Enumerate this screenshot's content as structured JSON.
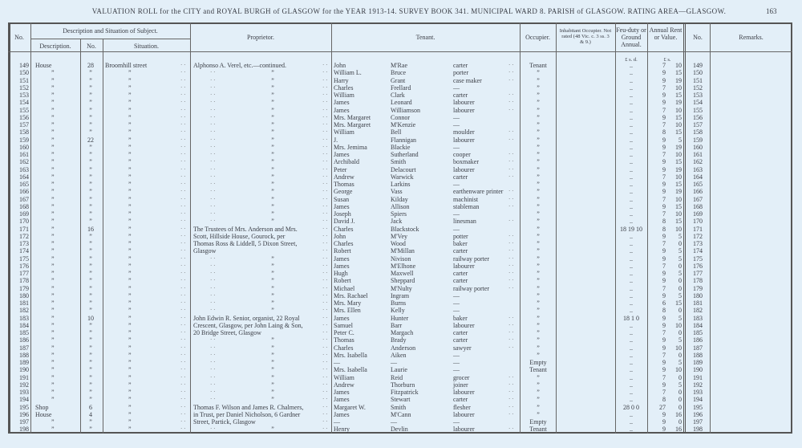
{
  "header": {
    "title": "VALUATION ROLL for the CITY and ROYAL BURGH of GLASGOW for the YEAR 1913-14.   SURVEY BOOK 341.   MUNICIPAL WARD 8.   PARISH of GLASGOW.   RATING AREA—GLASGOW.",
    "page_number": "163"
  },
  "columns": {
    "no": "No.",
    "description_group": "Description and Situation of Subject.",
    "description": "Description.",
    "num": "No.",
    "situation": "Situation.",
    "proprietor": "Proprietor.",
    "tenant": "Tenant.",
    "occupier": "Occupier.",
    "inhabitant": "Inhabitant Occupier. Not rated (48 Vic. c. 3 ss. 3 & 9.)",
    "feu": "Feu-duty or Ground Annual.",
    "rent": "Annual Rent or Value.",
    "no2": "No.",
    "remarks": "Remarks.",
    "feu_units": "£ s. d.",
    "rent_units": "£ s."
  },
  "rows": [
    [
      "149",
      "House",
      "28",
      "Broomhill street",
      "Alphonso A. Verel, etc.—continued.",
      "John",
      "M'Rae",
      "carter",
      "Tenant",
      "..",
      "7",
      "10"
    ],
    [
      "150",
      "”",
      "”",
      "”",
      "”",
      "William L.",
      "Bruce",
      "porter",
      "”",
      "..",
      "9",
      "15"
    ],
    [
      "151",
      "”",
      "”",
      "”",
      "”",
      "Harry",
      "Grant",
      "case maker",
      "”",
      "..",
      "9",
      "19"
    ],
    [
      "152",
      "”",
      "”",
      "”",
      "”",
      "Charles",
      "Frellard",
      "—",
      "”",
      "..",
      "7",
      "10"
    ],
    [
      "153",
      "”",
      "”",
      "”",
      "”",
      "William",
      "Clark",
      "carter",
      "”",
      "..",
      "9",
      "15"
    ],
    [
      "154",
      "”",
      "”",
      "”",
      "”",
      "James",
      "Leonard",
      "labourer",
      "”",
      "..",
      "9",
      "19"
    ],
    [
      "155",
      "”",
      "”",
      "”",
      "”",
      "James",
      "Williamson",
      "labourer",
      "”",
      "..",
      "7",
      "10"
    ],
    [
      "156",
      "”",
      "”",
      "”",
      "”",
      "Mrs. Margaret",
      "Connor",
      "—",
      "”",
      "..",
      "9",
      "15"
    ],
    [
      "157",
      "”",
      "”",
      "”",
      "”",
      "Mrs. Margaret",
      "M'Kenzie",
      "—",
      "”",
      "..",
      "7",
      "10"
    ],
    [
      "158",
      "”",
      "”",
      "”",
      "”",
      "William",
      "Bell",
      "moulder",
      "”",
      "..",
      "8",
      "15"
    ],
    [
      "159",
      "”",
      "22",
      "”",
      "”",
      "J.",
      "Flannigan",
      "labourer",
      "”",
      "..",
      "9",
      "5"
    ],
    [
      "160",
      "”",
      "”",
      "”",
      "”",
      "Mrs. Jemima",
      "Blackie",
      "—",
      "”",
      "..",
      "9",
      "19"
    ],
    [
      "161",
      "”",
      "”",
      "”",
      "”",
      "James",
      "Sutherland",
      "cooper",
      "”",
      "..",
      "7",
      "10"
    ],
    [
      "162",
      "”",
      "”",
      "”",
      "”",
      "Archibald",
      "Smith",
      "boxmaker",
      "”",
      "..",
      "9",
      "15"
    ],
    [
      "163",
      "”",
      "”",
      "”",
      "”",
      "Peter",
      "Delacourt",
      "labourer",
      "”",
      "..",
      "9",
      "19"
    ],
    [
      "164",
      "”",
      "”",
      "”",
      "”",
      "Andrew",
      "Warwick",
      "carter",
      "”",
      "..",
      "7",
      "10"
    ],
    [
      "165",
      "”",
      "”",
      "”",
      "”",
      "Thomas",
      "Larkins",
      "—",
      "”",
      "..",
      "9",
      "15"
    ],
    [
      "166",
      "”",
      "”",
      "”",
      "”",
      "George",
      "Vass",
      "earthenware printer",
      "”",
      "..",
      "9",
      "19"
    ],
    [
      "167",
      "”",
      "”",
      "”",
      "”",
      "Susan",
      "Kilday",
      "machinist",
      "”",
      "..",
      "7",
      "10"
    ],
    [
      "168",
      "”",
      "”",
      "”",
      "”",
      "James",
      "Allison",
      "stableman",
      "”",
      "..",
      "9",
      "15"
    ],
    [
      "169",
      "”",
      "”",
      "”",
      "”",
      "Joseph",
      "Spiers",
      "—",
      "”",
      "..",
      "7",
      "10"
    ],
    [
      "170",
      "”",
      "”",
      "”",
      "”",
      "David J.",
      "Jack",
      "linesman",
      "”",
      "..",
      "8",
      "15"
    ],
    [
      "171",
      "”",
      "16",
      "”",
      "The Trustees of Mrs. Anderson and Mrs.",
      "Charles",
      "Blackstock",
      "—",
      "”",
      "18 19 10",
      "8",
      "10"
    ],
    [
      "172",
      "”",
      "”",
      "”",
      "Scott, Hillside House, Gourock, per",
      "John",
      "M'Vey",
      "potter",
      "”",
      "..",
      "9",
      "5"
    ],
    [
      "173",
      "”",
      "”",
      "”",
      "Thomas Ross & Liddell, 5 Dixon Street,",
      "Charles",
      "Wood",
      "baker",
      "”",
      "..",
      "7",
      "0"
    ],
    [
      "174",
      "”",
      "”",
      "”",
      "Glasgow",
      "Robert",
      "M'Millan",
      "carter",
      "”",
      "..",
      "9",
      "5"
    ],
    [
      "175",
      "”",
      "”",
      "”",
      "”",
      "James",
      "Nivison",
      "railway porter",
      "”",
      "..",
      "9",
      "5"
    ],
    [
      "176",
      "”",
      "”",
      "”",
      "”",
      "James",
      "M'Elhone",
      "labourer",
      "”",
      "..",
      "7",
      "0"
    ],
    [
      "177",
      "”",
      "”",
      "”",
      "”",
      "Hugh",
      "Maxwell",
      "carter",
      "”",
      "..",
      "9",
      "5"
    ],
    [
      "178",
      "”",
      "”",
      "”",
      "”",
      "Robert",
      "Sheppard",
      "carter",
      "”",
      "..",
      "9",
      "0"
    ],
    [
      "179",
      "”",
      "”",
      "”",
      "”",
      "Michael",
      "M'Nulty",
      "railway porter",
      "”",
      "..",
      "7",
      "0"
    ],
    [
      "180",
      "”",
      "”",
      "”",
      "”",
      "Mrs. Rachael",
      "Ingram",
      "—",
      "”",
      "..",
      "9",
      "5"
    ],
    [
      "181",
      "”",
      "”",
      "”",
      "”",
      "Mrs. Mary",
      "Burns",
      "—",
      "”",
      "..",
      "6",
      "15"
    ],
    [
      "182",
      "”",
      "”",
      "”",
      "”",
      "Mrs. Ellen",
      "Kelly",
      "—",
      "”",
      "..",
      "8",
      "0"
    ],
    [
      "183",
      "”",
      "10",
      "”",
      "John Edwin R. Senior, organist, 22 Royal",
      "James",
      "Hunter",
      "baker",
      "”",
      "18 1 0",
      "9",
      "5"
    ],
    [
      "184",
      "”",
      "”",
      "”",
      "Crescent, Glasgow, per John Laing & Son,",
      "Samuel",
      "Barr",
      "labourer",
      "”",
      "..",
      "9",
      "10"
    ],
    [
      "185",
      "”",
      "”",
      "”",
      "20 Bridge Street, Glasgow",
      "Peter C.",
      "Margach",
      "carter",
      "”",
      "..",
      "7",
      "0"
    ],
    [
      "186",
      "”",
      "”",
      "”",
      "”",
      "Thomas",
      "Brady",
      "carter",
      "”",
      "..",
      "9",
      "5"
    ],
    [
      "187",
      "”",
      "”",
      "”",
      "”",
      "Charles",
      "Anderson",
      "sawyer",
      "”",
      "..",
      "9",
      "10"
    ],
    [
      "188",
      "”",
      "”",
      "”",
      "”",
      "Mrs. Isabella",
      "Aiken",
      "—",
      "”",
      "..",
      "7",
      "0"
    ],
    [
      "189",
      "”",
      "”",
      "”",
      "”",
      "—",
      "—",
      "—",
      "Empty",
      "..",
      "9",
      "5"
    ],
    [
      "190",
      "”",
      "”",
      "”",
      "”",
      "Mrs. Isabella",
      "Laurie",
      "—",
      "Tenant",
      "..",
      "9",
      "10"
    ],
    [
      "191",
      "”",
      "”",
      "”",
      "”",
      "William",
      "Reid",
      "grocer",
      "”",
      "..",
      "7",
      "0"
    ],
    [
      "192",
      "”",
      "”",
      "”",
      "”",
      "Andrew",
      "Thorburn",
      "joiner",
      "”",
      "..",
      "9",
      "5"
    ],
    [
      "193",
      "”",
      "”",
      "”",
      "”",
      "James",
      "Fitzpatrick",
      "labourer",
      "”",
      "..",
      "7",
      "0"
    ],
    [
      "194",
      "”",
      "”",
      "”",
      "”",
      "James",
      "Stewart",
      "carter",
      "”",
      "..",
      "8",
      "0"
    ],
    [
      "195",
      "Shop",
      "6",
      "”",
      "Thomas F. Wilson and James R. Chalmers,",
      "Margaret W.",
      "Smith",
      "flesher",
      "”",
      "28 0 0",
      "27",
      "0"
    ],
    [
      "196",
      "House",
      "4",
      "”",
      "in Trust, per Daniel Nicholson, 6 Gardner",
      "James",
      "M'Cann",
      "labourer",
      "”",
      "..",
      "9",
      "16"
    ],
    [
      "197",
      "”",
      "”",
      "”",
      "Street, Partick, Glasgow",
      "—",
      "—",
      "—",
      "Empty",
      "..",
      "9",
      "0"
    ],
    [
      "198",
      "”",
      "”",
      "”",
      "”",
      "Henry",
      "Devlin",
      "labourer",
      "Tenant",
      "..",
      "9",
      "16"
    ]
  ]
}
